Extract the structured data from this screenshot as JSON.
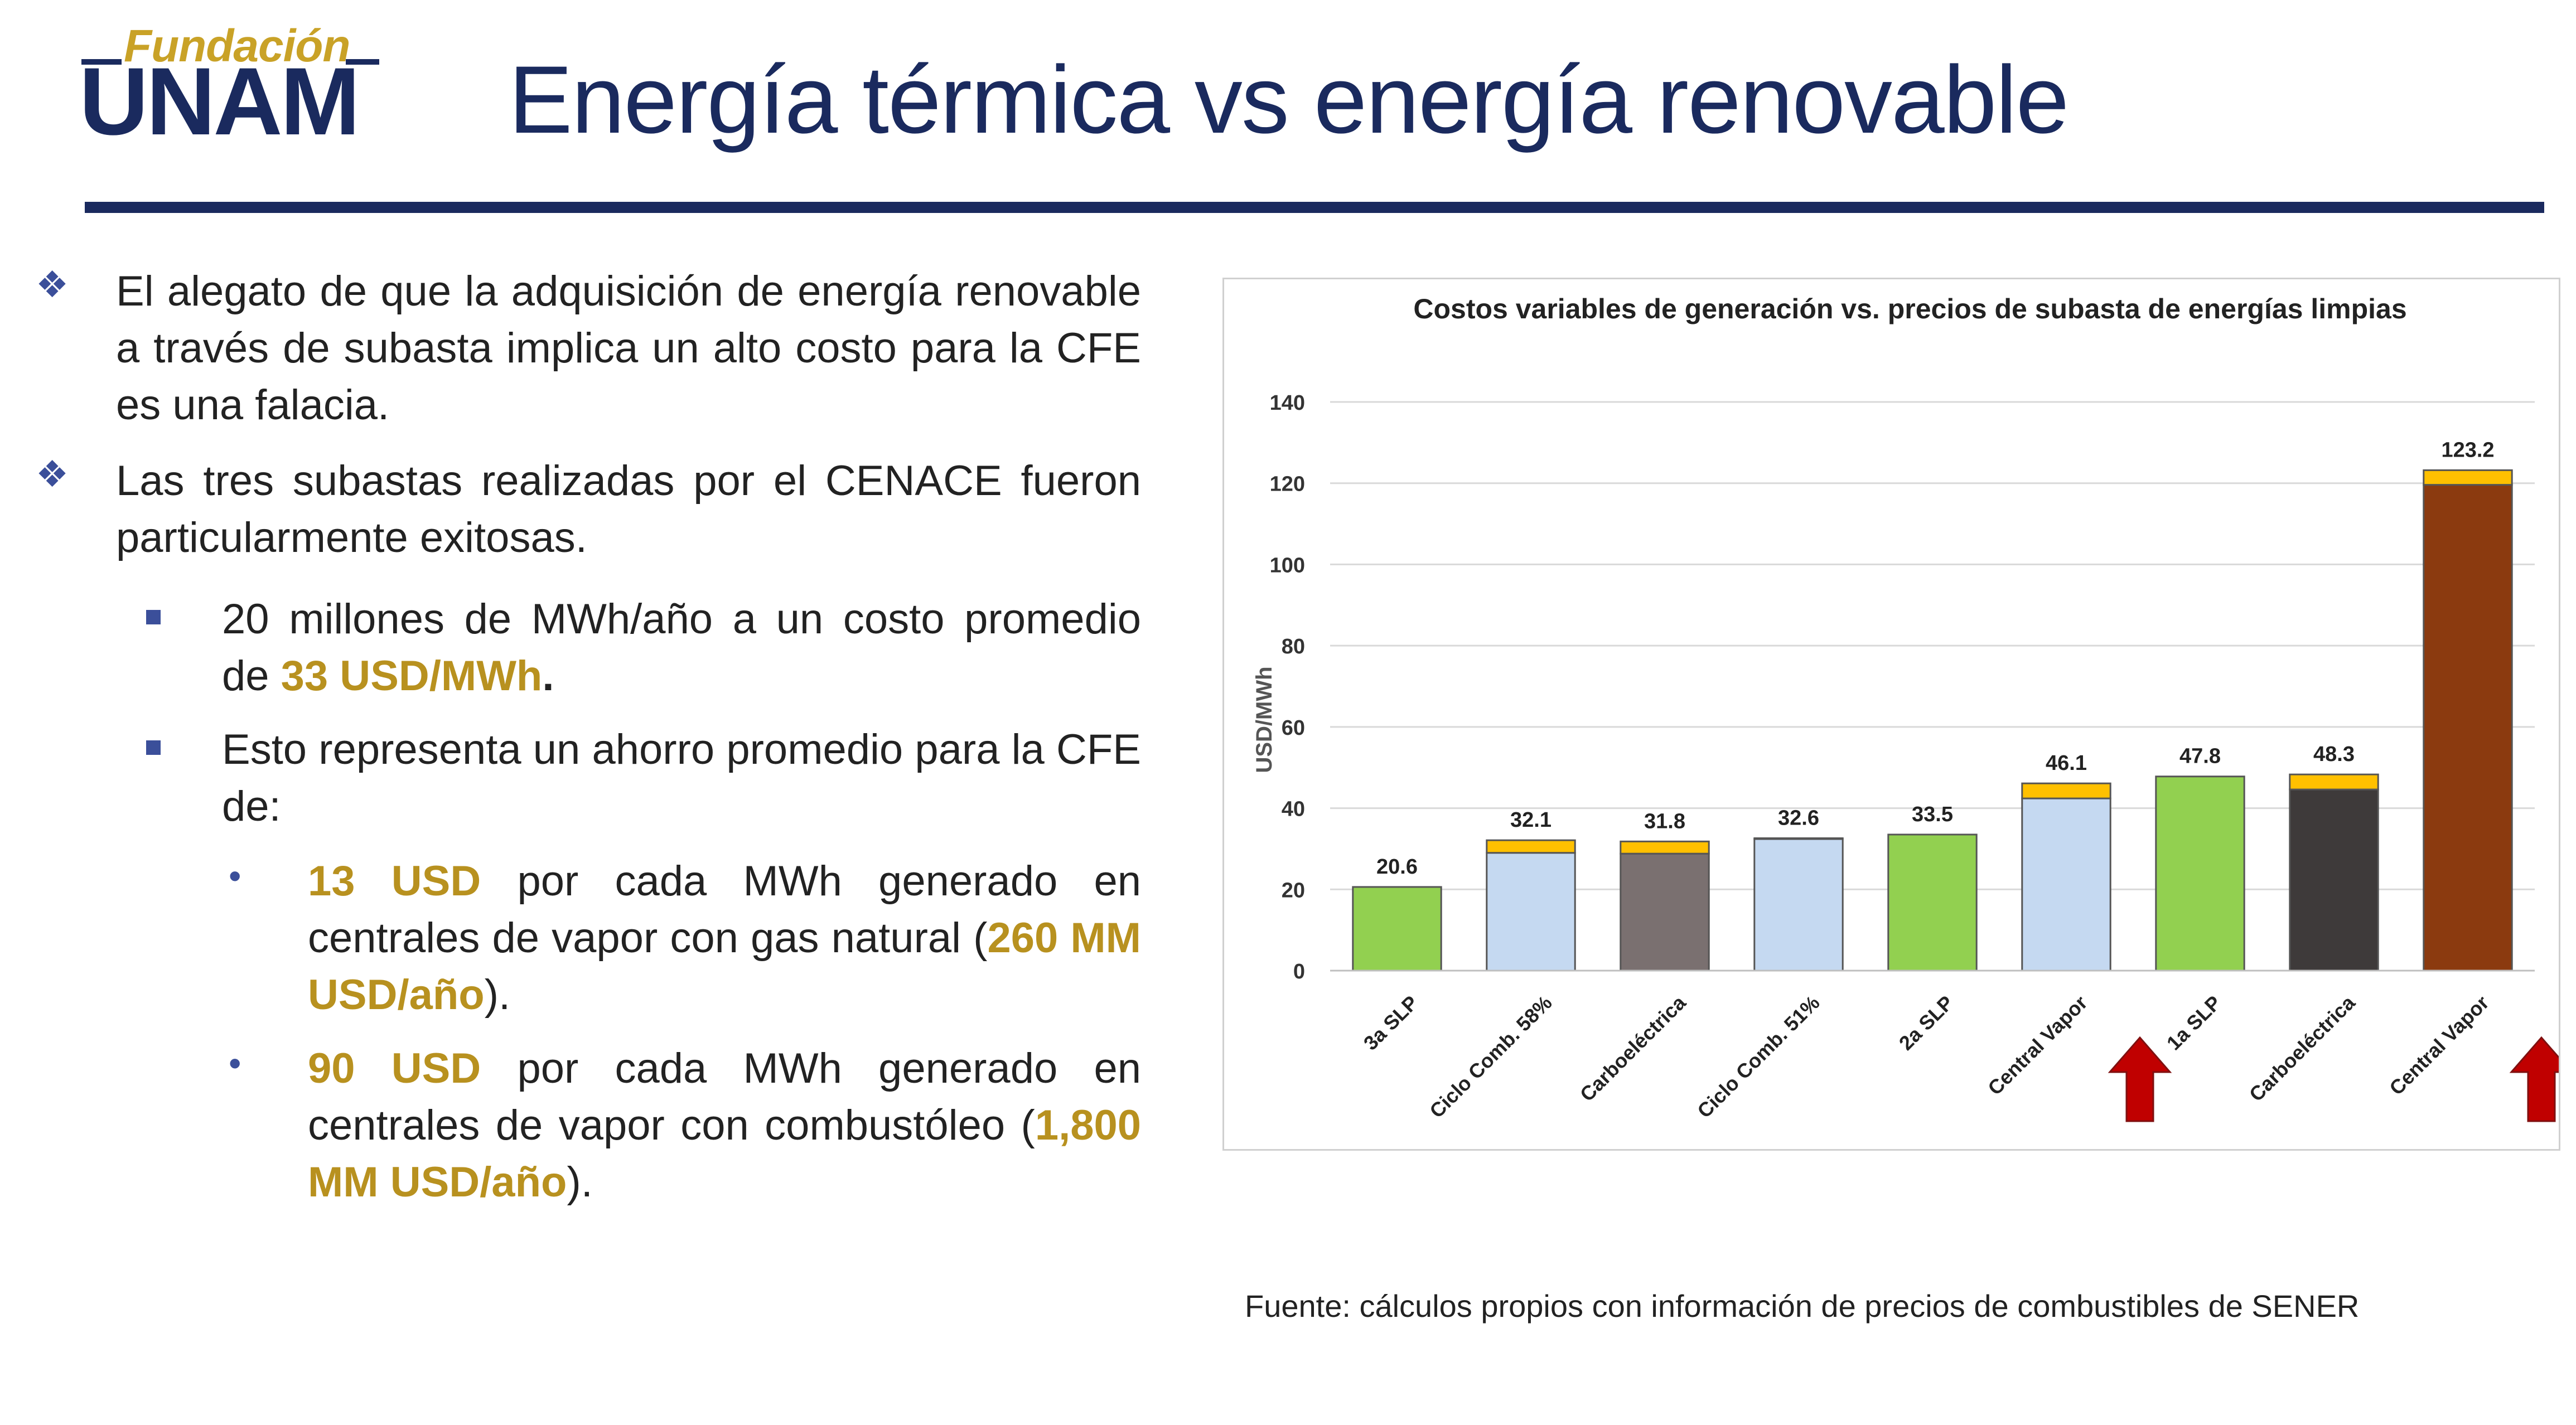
{
  "logo": {
    "top_text": "Fundación",
    "main_text": "UNAM"
  },
  "slide": {
    "title": "Energía térmica vs energía renovable",
    "source": "Fuente:  cálculos propios con información de precios de combustibles de SENER"
  },
  "bullets": {
    "b1": "El alegato de que la adquisición de energía renovable a través de subasta implica un alto costo para la CFE es una falacia.",
    "b2": "Las tres subastas realizadas por el CENACE fueron particularmente exitosas.",
    "s1_a": "20 millones de MWh/año a un costo promedio de ",
    "s1_hl": "33 USD/MWh",
    "s1_b": ".",
    "s2": "Esto representa un ahorro promedio para la CFE de:",
    "d1_hl1": "13 USD",
    "d1_a": " por cada MWh generado en centrales de vapor con gas natural (",
    "d1_hl2": "260 MM USD/año",
    "d1_b": ").",
    "d2_hl1": "90 USD",
    "d2_a": " por cada MWh generado en centrales de vapor con combustóleo (",
    "d2_hl2": "1,800 MM USD/año",
    "d2_b": ")."
  },
  "chart_data": {
    "type": "bar",
    "stacked": true,
    "title": "Costos variables de generación vs. precios de subasta de energías limpias",
    "ylabel": "USD/MWh",
    "xlabel": "",
    "ylim": [
      0,
      140
    ],
    "yticks": [
      0,
      20,
      40,
      60,
      80,
      100,
      120,
      140
    ],
    "grid": true,
    "categories": [
      "3a SLP",
      "Ciclo Comb. 58%",
      "Carboeléctrica",
      "Ciclo Comb. 51%",
      "2a SLP",
      "Central Vapor",
      "1a SLP",
      "Carboeléctrica",
      "Central Vapor"
    ],
    "totals": [
      20.6,
      32.1,
      31.8,
      32.6,
      33.5,
      46.1,
      47.8,
      48.3,
      123.2
    ],
    "total_labels": [
      "20.6",
      "32.1",
      "31.8",
      "32.6",
      "33.5",
      "46.1",
      "47.8",
      "48.3",
      "123.2"
    ],
    "base_values": [
      20.6,
      29.0,
      28.8,
      32.4,
      33.5,
      42.4,
      47.8,
      44.6,
      119.6
    ],
    "top_values": [
      0,
      3.1,
      3.0,
      0.2,
      0,
      3.7,
      0,
      3.7,
      3.6
    ],
    "base_colors": [
      "#92d050",
      "#c5d9f1",
      "#7a7070",
      "#c5d9f1",
      "#92d050",
      "#c5d9f1",
      "#92d050",
      "#3e3a3a",
      "#8b3a0f"
    ],
    "top_color": "#ffc000",
    "arrow_color": "#c00000",
    "arrows_at": [
      5,
      8
    ]
  }
}
